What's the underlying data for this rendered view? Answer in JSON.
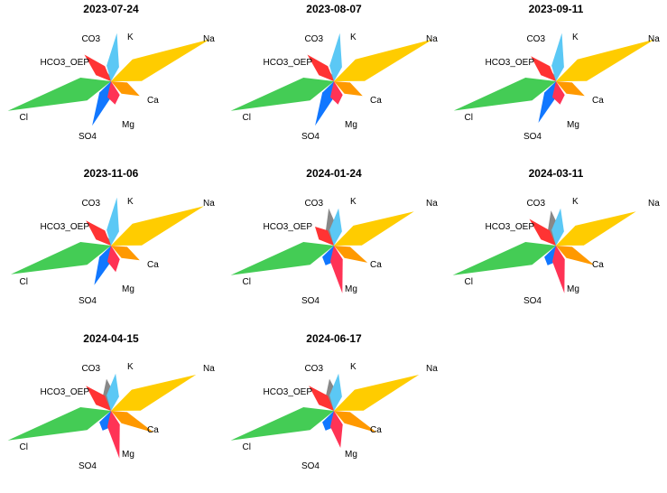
{
  "chart_data": {
    "type": "radar-star",
    "ions": [
      "K",
      "Na",
      "Ca",
      "Mg",
      "SO4",
      "Cl",
      "HCO3_OEP",
      "CO3"
    ],
    "colors": {
      "K": "#5bc8f5",
      "Na": "#ffcc00",
      "Ca": "#ff9900",
      "Mg": "#ff3355",
      "SO4": "#1177ff",
      "Cl": "#44cc55",
      "HCO3_OEP": "#ff3333",
      "CO3": "#888888"
    },
    "panels": [
      {
        "date": "2023-07-24",
        "values": {
          "K": 0.45,
          "Na": 1.0,
          "Ca": 0.3,
          "Mg": 0.22,
          "SO4": 0.45,
          "Cl": 1.0,
          "HCO3_OEP": 0.35,
          "CO3": 0.05
        }
      },
      {
        "date": "2023-08-07",
        "values": {
          "K": 0.45,
          "Na": 1.0,
          "Ca": 0.3,
          "Mg": 0.22,
          "SO4": 0.45,
          "Cl": 1.0,
          "HCO3_OEP": 0.35,
          "CO3": 0.05
        }
      },
      {
        "date": "2023-09-11",
        "values": {
          "K": 0.45,
          "Na": 1.0,
          "Ca": 0.3,
          "Mg": 0.22,
          "SO4": 0.42,
          "Cl": 0.99,
          "HCO3_OEP": 0.33,
          "CO3": 0.05
        }
      },
      {
        "date": "2023-11-06",
        "values": {
          "K": 0.45,
          "Na": 0.94,
          "Ca": 0.3,
          "Mg": 0.25,
          "SO4": 0.4,
          "Cl": 0.97,
          "HCO3_OEP": 0.33,
          "CO3": 0.05
        }
      },
      {
        "date": "2024-01-24",
        "values": {
          "K": 0.35,
          "Na": 0.81,
          "Ca": 0.35,
          "Mg": 0.45,
          "SO4": 0.2,
          "Cl": 1.0,
          "HCO3_OEP": 0.25,
          "CO3": 0.35
        }
      },
      {
        "date": "2024-03-11",
        "values": {
          "K": 0.35,
          "Na": 0.81,
          "Ca": 0.4,
          "Mg": 0.45,
          "SO4": 0.2,
          "Cl": 1.0,
          "HCO3_OEP": 0.35,
          "CO3": 0.33
        }
      },
      {
        "date": "2024-04-15",
        "values": {
          "K": 0.35,
          "Na": 0.86,
          "Ca": 0.45,
          "Mg": 0.45,
          "SO4": 0.2,
          "Cl": 1.0,
          "HCO3_OEP": 0.33,
          "CO3": 0.3
        }
      },
      {
        "date": "2024-06-17",
        "values": {
          "K": 0.35,
          "Na": 0.86,
          "Ca": 0.45,
          "Mg": 0.35,
          "SO4": 0.2,
          "Cl": 1.0,
          "HCO3_OEP": 0.33,
          "CO3": 0.3
        }
      }
    ]
  }
}
